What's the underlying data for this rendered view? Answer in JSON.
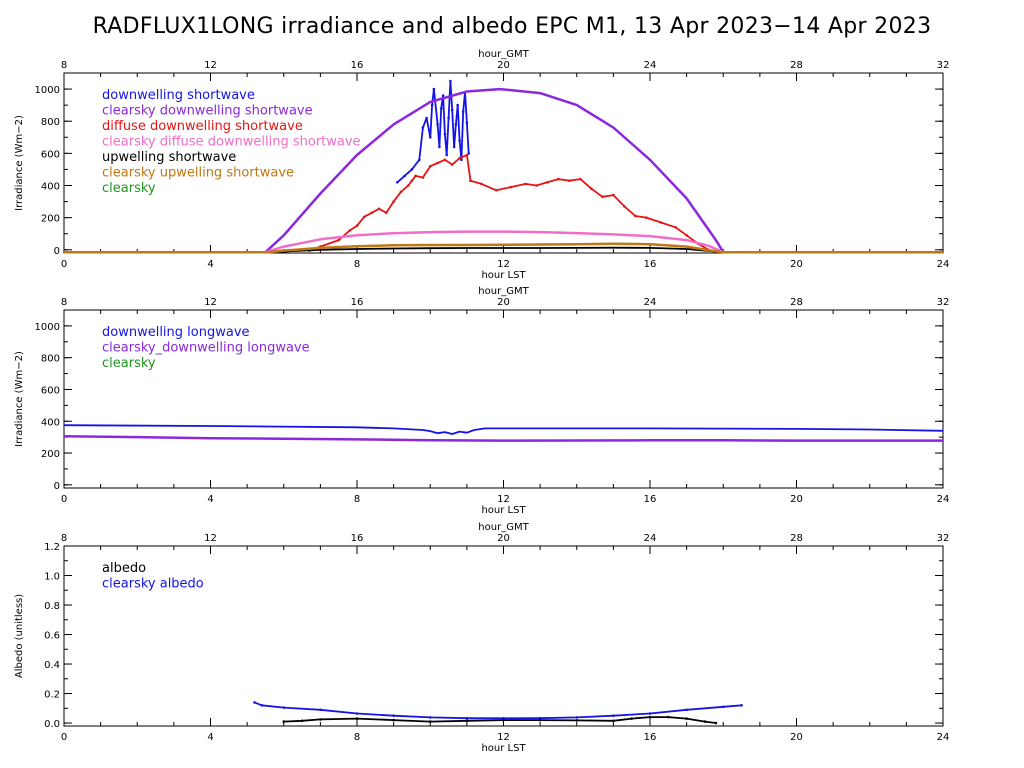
{
  "title": "RADFLUX1LONG irradiance and albedo EPC M1, 13 Apr 2023−14 Apr 2023",
  "colors": {
    "blue": "#1414e6",
    "purple": "#8c28dc",
    "red": "#e61414",
    "pink": "#f06ec8",
    "black": "#000000",
    "brown": "#c07814",
    "green": "#1e961e"
  },
  "chart_data": [
    {
      "type": "line",
      "top_axis": {
        "label": "hour_GMT",
        "ticks": [
          "8",
          "12",
          "16",
          "20",
          "24",
          "28",
          "32"
        ]
      },
      "bottom_axis": {
        "label": "hour LST",
        "ticks": [
          "0",
          "4",
          "8",
          "12",
          "16",
          "20",
          "24"
        ],
        "xlim": [
          0,
          24
        ]
      },
      "ylabel": "Irradiance (Wm−2)",
      "ylim": [
        -20,
        1100
      ],
      "yticks": [
        "0",
        "200",
        "400",
        "600",
        "800",
        "1000"
      ],
      "legend": [
        {
          "label": "downwelling shortwave",
          "color": "#1414e6"
        },
        {
          "label": "clearsky downwelling shortwave",
          "color": "#8c28dc"
        },
        {
          "label": "diffuse downwelling shortwave",
          "color": "#e61414"
        },
        {
          "label": "clearsky diffuse downwelling shortwave",
          "color": "#f06ec8"
        },
        {
          "label": "upwelling shortwave",
          "color": "#000000"
        },
        {
          "label": "clearsky upwelling shortwave",
          "color": "#c07814"
        },
        {
          "label": "clearsky",
          "color": "#1e961e"
        }
      ],
      "series": [
        {
          "name": "downwelling shortwave",
          "color": "#1414e6",
          "points": [
            [
              9.1,
              420
            ],
            [
              9.3,
              460
            ],
            [
              9.5,
              500
            ],
            [
              9.7,
              560
            ],
            [
              9.8,
              760
            ],
            [
              9.9,
              820
            ],
            [
              10.0,
              700
            ],
            [
              10.05,
              900
            ],
            [
              10.1,
              1000
            ],
            [
              10.2,
              780
            ],
            [
              10.25,
              640
            ],
            [
              10.3,
              880
            ],
            [
              10.35,
              960
            ],
            [
              10.4,
              720
            ],
            [
              10.45,
              590
            ],
            [
              10.5,
              820
            ],
            [
              10.55,
              1050
            ],
            [
              10.6,
              870
            ],
            [
              10.65,
              640
            ],
            [
              10.7,
              780
            ],
            [
              10.75,
              900
            ],
            [
              10.8,
              680
            ],
            [
              10.85,
              560
            ],
            [
              10.9,
              860
            ],
            [
              10.95,
              980
            ],
            [
              11.0,
              790
            ],
            [
              11.05,
              600
            ]
          ]
        },
        {
          "name": "clearsky downwelling shortwave",
          "color": "#8c28dc",
          "points": [
            [
              0,
              -15
            ],
            [
              5.5,
              -15
            ],
            [
              6,
              90
            ],
            [
              7,
              350
            ],
            [
              8,
              590
            ],
            [
              9,
              780
            ],
            [
              10,
              920
            ],
            [
              11,
              985
            ],
            [
              11.9,
              1000
            ],
            [
              13,
              975
            ],
            [
              14,
              900
            ],
            [
              15,
              760
            ],
            [
              16,
              560
            ],
            [
              17,
              320
            ],
            [
              17.8,
              60
            ],
            [
              18,
              -15
            ],
            [
              24,
              -15
            ]
          ]
        },
        {
          "name": "diffuse downwelling shortwave",
          "color": "#e61414",
          "points": [
            [
              6.7,
              -5
            ],
            [
              7,
              20
            ],
            [
              7.5,
              60
            ],
            [
              7.8,
              120
            ],
            [
              8,
              150
            ],
            [
              8.2,
              205
            ],
            [
              8.4,
              230
            ],
            [
              8.6,
              255
            ],
            [
              8.8,
              230
            ],
            [
              9,
              300
            ],
            [
              9.2,
              360
            ],
            [
              9.4,
              400
            ],
            [
              9.5,
              430
            ],
            [
              9.6,
              460
            ],
            [
              9.8,
              450
            ],
            [
              10,
              520
            ],
            [
              10.2,
              540
            ],
            [
              10.4,
              560
            ],
            [
              10.6,
              530
            ],
            [
              10.8,
              570
            ],
            [
              11,
              590
            ],
            [
              11.1,
              430
            ],
            [
              11.4,
              410
            ],
            [
              11.8,
              370
            ],
            [
              12.2,
              390
            ],
            [
              12.6,
              410
            ],
            [
              12.9,
              400
            ],
            [
              13.2,
              420
            ],
            [
              13.5,
              440
            ],
            [
              13.8,
              430
            ],
            [
              14.1,
              440
            ],
            [
              14.4,
              380
            ],
            [
              14.7,
              330
            ],
            [
              15.0,
              340
            ],
            [
              15.3,
              270
            ],
            [
              15.6,
              210
            ],
            [
              15.9,
              200
            ],
            [
              16.3,
              170
            ],
            [
              16.7,
              140
            ],
            [
              17.0,
              90
            ],
            [
              17.3,
              40
            ],
            [
              17.6,
              0
            ]
          ]
        },
        {
          "name": "clearsky diffuse downwelling shortwave",
          "color": "#f06ec8",
          "points": [
            [
              0,
              -15
            ],
            [
              5.5,
              -15
            ],
            [
              6,
              20
            ],
            [
              7,
              65
            ],
            [
              8,
              90
            ],
            [
              9,
              103
            ],
            [
              10,
              110
            ],
            [
              11,
              113
            ],
            [
              12,
              113
            ],
            [
              13,
              110
            ],
            [
              14,
              104
            ],
            [
              15,
              96
            ],
            [
              16,
              85
            ],
            [
              17,
              60
            ],
            [
              17.6,
              25
            ],
            [
              18,
              -15
            ],
            [
              24,
              -15
            ]
          ]
        },
        {
          "name": "upwelling shortwave",
          "color": "#000000",
          "points": [
            [
              0,
              -15
            ],
            [
              5.8,
              -15
            ],
            [
              6.2,
              -8
            ],
            [
              7,
              0
            ],
            [
              8,
              5
            ],
            [
              9,
              8
            ],
            [
              10,
              10
            ],
            [
              11,
              11
            ],
            [
              12,
              11
            ],
            [
              13,
              11
            ],
            [
              14,
              12
            ],
            [
              15,
              13
            ],
            [
              16,
              12
            ],
            [
              17,
              5
            ],
            [
              18,
              -15
            ],
            [
              24,
              -15
            ]
          ]
        },
        {
          "name": "clearsky upwelling shortwave",
          "color": "#c07814",
          "points": [
            [
              0,
              -15
            ],
            [
              5.6,
              -15
            ],
            [
              6,
              -5
            ],
            [
              7,
              12
            ],
            [
              8,
              22
            ],
            [
              9,
              28
            ],
            [
              10,
              30
            ],
            [
              11,
              30
            ],
            [
              12,
              31
            ],
            [
              13,
              33
            ],
            [
              14,
              35
            ],
            [
              15,
              37
            ],
            [
              16,
              35
            ],
            [
              17,
              20
            ],
            [
              17.8,
              -10
            ],
            [
              18,
              -15
            ],
            [
              24,
              -15
            ]
          ]
        }
      ]
    },
    {
      "type": "line",
      "top_axis": {
        "label": "hour_GMT",
        "ticks": [
          "8",
          "12",
          "16",
          "20",
          "24",
          "28",
          "32"
        ]
      },
      "bottom_axis": {
        "label": "hour LST",
        "ticks": [
          "0",
          "4",
          "8",
          "12",
          "16",
          "20",
          "24"
        ],
        "xlim": [
          0,
          24
        ]
      },
      "ylabel": "Irradiance (Wm−2)",
      "ylim": [
        -20,
        1100
      ],
      "yticks": [
        "0",
        "200",
        "400",
        "600",
        "800",
        "1000"
      ],
      "legend": [
        {
          "label": "downwelling longwave",
          "color": "#1414e6"
        },
        {
          "label": "clearsky_downwelling longwave",
          "color": "#8c28dc"
        },
        {
          "label": "clearsky",
          "color": "#1e961e"
        }
      ],
      "series": [
        {
          "name": "downwelling longwave",
          "color": "#1414e6",
          "points": [
            [
              0,
              375
            ],
            [
              4,
              370
            ],
            [
              8,
              362
            ],
            [
              9,
              355
            ],
            [
              9.8,
              345
            ],
            [
              10,
              338
            ],
            [
              10.2,
              325
            ],
            [
              10.4,
              332
            ],
            [
              10.6,
              320
            ],
            [
              10.8,
              335
            ],
            [
              11.0,
              328
            ],
            [
              11.2,
              345
            ],
            [
              11.5,
              355
            ],
            [
              14,
              355
            ],
            [
              16,
              355
            ],
            [
              20,
              352
            ],
            [
              22,
              348
            ],
            [
              24,
              340
            ]
          ]
        },
        {
          "name": "clearsky_downwelling longwave",
          "color": "#8c28dc",
          "points": [
            [
              0,
              305
            ],
            [
              2,
              300
            ],
            [
              4,
              293
            ],
            [
              6,
              290
            ],
            [
              8,
              286
            ],
            [
              10,
              281
            ],
            [
              12,
              278
            ],
            [
              14,
              279
            ],
            [
              16,
              280
            ],
            [
              18,
              280
            ],
            [
              20,
              278
            ],
            [
              22,
              278
            ],
            [
              24,
              278
            ]
          ]
        }
      ]
    },
    {
      "type": "line",
      "top_axis": {
        "label": "hour_GMT",
        "ticks": [
          "8",
          "12",
          "16",
          "20",
          "24",
          "28",
          "32"
        ]
      },
      "bottom_axis": {
        "label": "hour LST",
        "ticks": [
          "0",
          "4",
          "8",
          "12",
          "16",
          "20",
          "24"
        ],
        "xlim": [
          0,
          24
        ]
      },
      "ylabel": "Albedo (unitless)",
      "ylim": [
        -0.02,
        1.2
      ],
      "yticks": [
        "0.0",
        "0.2",
        "0.4",
        "0.6",
        "0.8",
        "1.0",
        "1.2"
      ],
      "legend": [
        {
          "label": "albedo",
          "color": "#000000"
        },
        {
          "label": "clearsky albedo",
          "color": "#1414e6"
        }
      ],
      "series": [
        {
          "name": "albedo",
          "color": "#000000",
          "points": [
            [
              6.0,
              0.01
            ],
            [
              6.5,
              0.015
            ],
            [
              7.0,
              0.025
            ],
            [
              8.0,
              0.03
            ],
            [
              9.0,
              0.02
            ],
            [
              10.0,
              0.01
            ],
            [
              11.0,
              0.015
            ],
            [
              12.0,
              0.02
            ],
            [
              13.0,
              0.02
            ],
            [
              14.0,
              0.018
            ],
            [
              15.0,
              0.015
            ],
            [
              15.5,
              0.03
            ],
            [
              16.0,
              0.04
            ],
            [
              16.5,
              0.04
            ],
            [
              17.0,
              0.03
            ],
            [
              17.5,
              0.01
            ],
            [
              17.8,
              0.0
            ]
          ]
        },
        {
          "name": "clearsky albedo",
          "color": "#1414e6",
          "points": [
            [
              5.2,
              0.14
            ],
            [
              5.4,
              0.12
            ],
            [
              6.0,
              0.105
            ],
            [
              7.0,
              0.09
            ],
            [
              8.0,
              0.065
            ],
            [
              9.0,
              0.05
            ],
            [
              10.0,
              0.038
            ],
            [
              11.0,
              0.033
            ],
            [
              12.0,
              0.032
            ],
            [
              13.0,
              0.033
            ],
            [
              14.0,
              0.038
            ],
            [
              15.0,
              0.05
            ],
            [
              16.0,
              0.065
            ],
            [
              17.0,
              0.09
            ],
            [
              18.0,
              0.11
            ],
            [
              18.5,
              0.12
            ]
          ]
        }
      ]
    }
  ]
}
